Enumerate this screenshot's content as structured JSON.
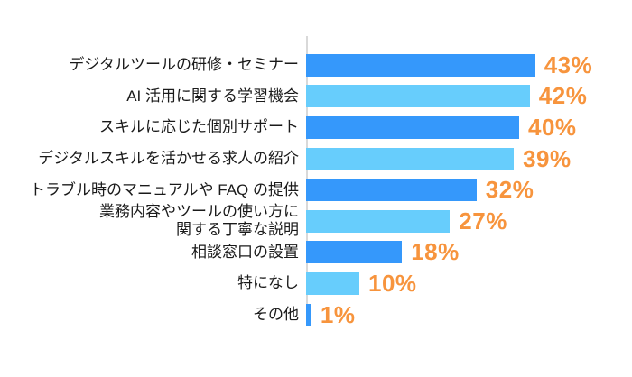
{
  "chart_data": {
    "type": "bar",
    "orientation": "horizontal",
    "title": "",
    "xlabel": "",
    "ylabel": "",
    "grid": false,
    "legend": false,
    "xlim": [
      0,
      43
    ],
    "unit": "%",
    "categories": [
      "デジタルツールの研修・セミナー",
      "AI 活用に関する学習機会",
      "スキルに応じた個別サポート",
      "デジタルスキルを活かせる求人の紹介",
      "トラブル時のマニュアルや FAQ の提供",
      "業務内容やツールの使い方に\n関する丁寧な説明",
      "相談窓口の設置",
      "特になし",
      "その他"
    ],
    "values": [
      43,
      42,
      40,
      39,
      32,
      27,
      18,
      10,
      1
    ],
    "value_labels": [
      "43%",
      "42%",
      "40%",
      "39%",
      "32%",
      "27%",
      "18%",
      "10%",
      "1%"
    ],
    "colors": {
      "bar_alternate": [
        "#3598FB",
        "#67CDFC"
      ],
      "value_label": "#F7943D",
      "axis_line": "#D9D9D9",
      "category_label": "#1A1A1A",
      "background": "#FFFFFF"
    }
  }
}
